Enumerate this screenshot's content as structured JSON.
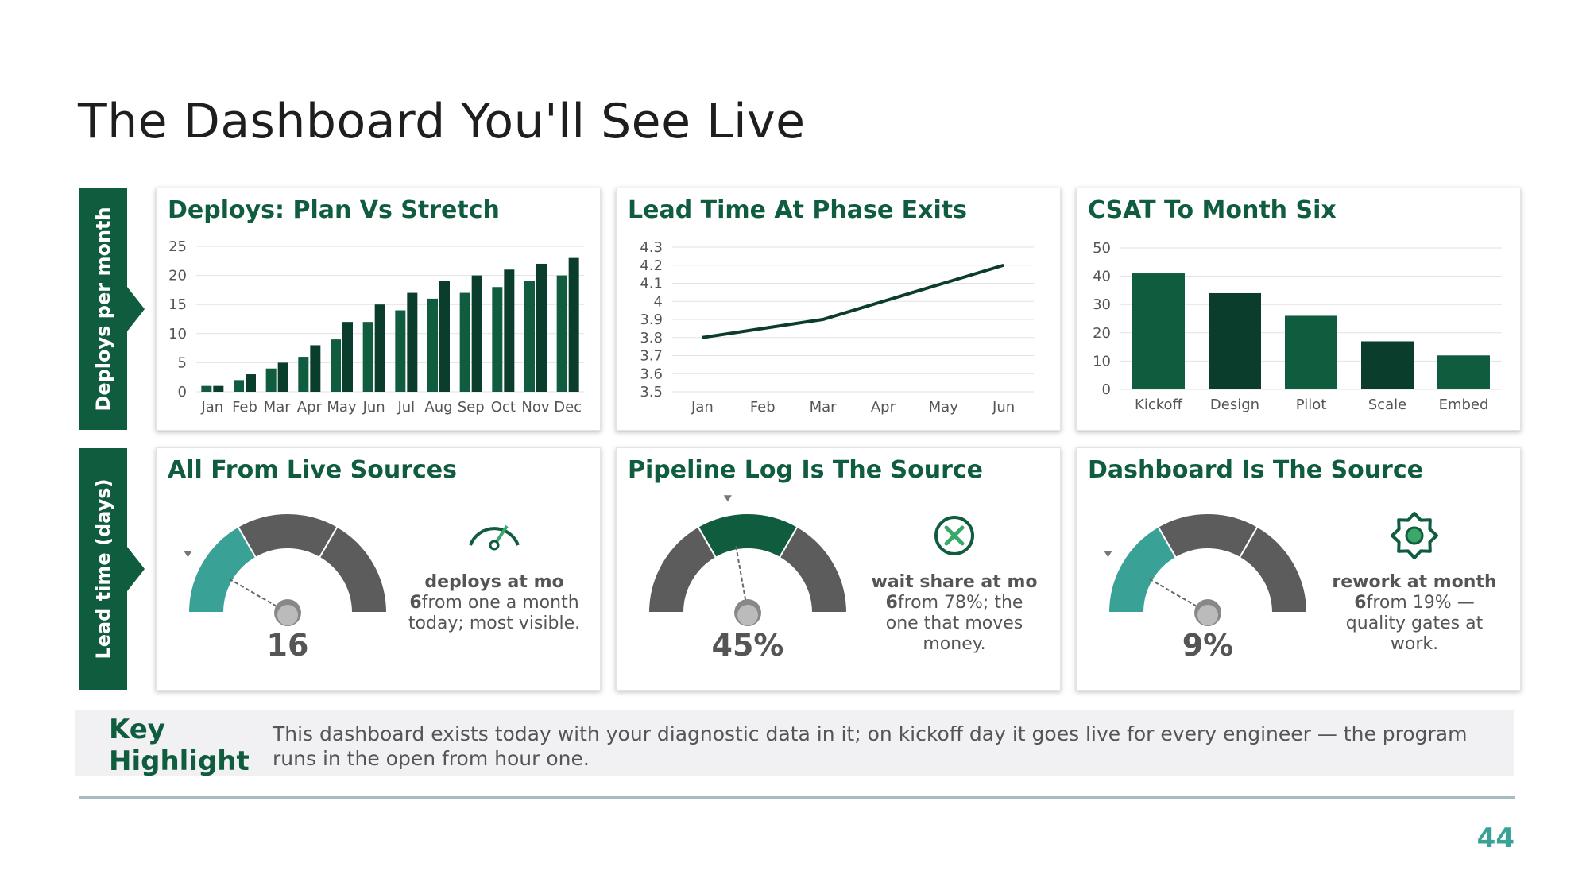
{
  "page": {
    "title": "The Dashboard You'll See Live",
    "page_number": "44"
  },
  "row_labels": [
    "Deploys per month",
    "Lead time (days)"
  ],
  "colors": {
    "brand": "#0f5c3e",
    "dark": "#0b3d2c",
    "teal": "#3aa197",
    "gray": "#5c5c5c"
  },
  "charts": {
    "deploys": {
      "title": "Deploys: Plan Vs Stretch"
    },
    "lead": {
      "title": "Lead Time At Phase Exits"
    },
    "csat": {
      "title": "CSAT To Month Six"
    }
  },
  "chart_data": [
    {
      "type": "bar",
      "title": "Deploys: Plan Vs Stretch",
      "categories": [
        "Jan",
        "Feb",
        "Mar",
        "Apr",
        "May",
        "Jun",
        "Jul",
        "Aug",
        "Sep",
        "Oct",
        "Nov",
        "Dec"
      ],
      "series": [
        {
          "values": [
            1,
            2,
            4,
            6,
            9,
            12,
            14,
            16,
            17,
            18,
            19,
            20
          ]
        },
        {
          "values": [
            1,
            3,
            5,
            8,
            12,
            15,
            17,
            19,
            20,
            21,
            22,
            23
          ]
        }
      ],
      "ylim": [
        0,
        25
      ],
      "yticks": [
        0,
        5,
        10,
        15,
        20,
        25
      ],
      "grid": true
    },
    {
      "type": "line",
      "title": "Lead Time At Phase Exits",
      "categories": [
        "Jan",
        "Feb",
        "Mar",
        "Apr",
        "May",
        "Jun"
      ],
      "values": [
        3.8,
        3.85,
        3.9,
        4.0,
        4.1,
        4.2
      ],
      "ylim": [
        3.5,
        4.3
      ],
      "yticks": [
        "3.5",
        "3.6",
        "3.7",
        "3.8",
        "3.9",
        "4",
        "4.1",
        "4.2",
        "4.3"
      ],
      "grid": true
    },
    {
      "type": "bar",
      "title": "CSAT To Month Six",
      "categories": [
        "Kickoff",
        "Design",
        "Pilot",
        "Scale",
        "Embed"
      ],
      "values": [
        41,
        34,
        26,
        17,
        12
      ],
      "ylim": [
        0,
        50
      ],
      "yticks": [
        0,
        10,
        20,
        30,
        40,
        50
      ],
      "grid": true
    }
  ],
  "gauges": [
    {
      "title": "All From Live Sources",
      "value": "16",
      "segment": "left",
      "icon": "speedometer-icon",
      "text_bold": "deploys at mo 6",
      "text_rest": "from one a month today; most visible."
    },
    {
      "title": "Pipeline Log Is The Source",
      "value": "45%",
      "segment": "middle",
      "icon": "close-circle-icon",
      "text_bold": "wait share at mo 6",
      "text_rest": "from 78%; the one that moves money."
    },
    {
      "title": "Dashboard Is The Source",
      "value": "9%",
      "segment": "left",
      "icon": "gear-icon",
      "text_bold": "rework at month 6",
      "text_rest": "from 19% — quality gates at work."
    }
  ],
  "key": {
    "label": "Key Highlight",
    "text": "This dashboard exists today with your diagnostic data in it; on kickoff day it goes live for every engineer — the program runs in the open from hour one."
  }
}
